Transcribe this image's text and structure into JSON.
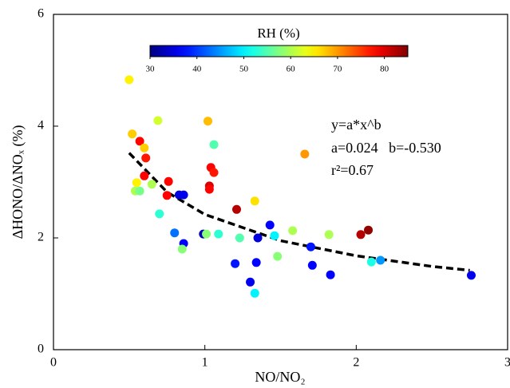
{
  "chart_data": {
    "type": "scatter",
    "x_label": "NO/NO₂",
    "y_label": "ΔHONO/ΔNOₓ (%)",
    "xlim": [
      0,
      3
    ],
    "xticks": [
      0,
      1,
      2,
      3
    ],
    "ylim": [
      0,
      6
    ],
    "yticks": [
      0,
      2,
      4,
      6
    ],
    "colormap": "jet",
    "colorbar": {
      "title": "RH (%)",
      "lim": [
        30,
        85
      ],
      "ticks": [
        30,
        40,
        50,
        60,
        70,
        80
      ]
    },
    "series": [
      {
        "x": [
          0.5,
          0.52,
          0.69,
          1.02,
          0.57,
          0.6,
          0.61,
          1.06,
          1.66,
          1.04,
          1.06,
          0.6,
          0.76,
          0.55,
          0.65,
          1.03,
          1.03,
          0.54,
          0.57,
          0.75,
          0.83,
          0.86,
          1.33,
          1.21,
          0.7,
          1.43,
          2.08,
          2.03,
          1.58,
          1.82,
          0.8,
          0.99,
          1.01,
          1.09,
          1.46,
          1.23,
          1.35,
          0.86,
          0.85,
          1.7,
          1.48,
          2.16,
          2.1,
          1.2,
          1.34,
          1.71,
          1.83,
          2.76,
          1.3,
          1.33
        ],
        "values": [
          4.83,
          3.86,
          4.1,
          4.09,
          3.73,
          3.61,
          3.43,
          3.67,
          3.5,
          3.26,
          3.17,
          3.11,
          3.01,
          2.99,
          2.96,
          2.93,
          2.87,
          2.84,
          2.84,
          2.76,
          2.77,
          2.77,
          2.66,
          2.51,
          2.43,
          2.23,
          2.14,
          2.06,
          2.13,
          2.06,
          2.09,
          2.07,
          2.07,
          2.07,
          2.04,
          2.0,
          2.0,
          1.9,
          1.8,
          1.84,
          1.67,
          1.6,
          1.57,
          1.54,
          1.56,
          1.51,
          1.34,
          1.33,
          1.21,
          1.01
        ],
        "rh": [
          65,
          67,
          62,
          68,
          78,
          67,
          77,
          55,
          70,
          78,
          77,
          78,
          78,
          65,
          60,
          80,
          78,
          60,
          57,
          78,
          35,
          36,
          66,
          82,
          53,
          37,
          84,
          82,
          60,
          60,
          43,
          33,
          58,
          53,
          50,
          55,
          35,
          37,
          58,
          38,
          58,
          45,
          52,
          38,
          37,
          37,
          37,
          36,
          36,
          50
        ]
      }
    ],
    "fit": {
      "x": [
        0.5,
        0.75,
        1,
        1.5,
        2,
        2.5,
        2.75
      ],
      "values": [
        3.52,
        2.82,
        2.42,
        1.95,
        1.68,
        1.49,
        1.42
      ]
    },
    "annotations": [
      "y=a*x^b",
      "a=0.024   b=-0.530",
      "r²=0.67"
    ]
  }
}
